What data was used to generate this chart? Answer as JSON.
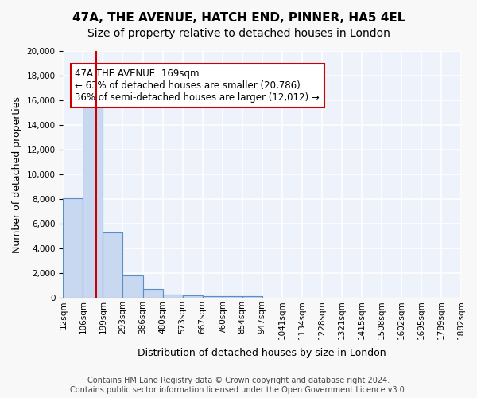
{
  "title_line1": "47A, THE AVENUE, HATCH END, PINNER, HA5 4EL",
  "title_line2": "Size of property relative to detached houses in London",
  "xlabel": "Distribution of detached houses by size in London",
  "ylabel": "Number of detached properties",
  "footer1": "Contains HM Land Registry data © Crown copyright and database right 2024.",
  "footer2": "Contains public sector information licensed under the Open Government Licence v3.0.",
  "annotation_line1": "47A THE AVENUE: 169sqm",
  "annotation_line2": "← 63% of detached houses are smaller (20,786)",
  "annotation_line3": "36% of semi-detached houses are larger (12,012) →",
  "bar_labels": [
    "12sqm",
    "106sqm",
    "199sqm",
    "293sqm",
    "386sqm",
    "480sqm",
    "573sqm",
    "667sqm",
    "760sqm",
    "854sqm",
    "947sqm",
    "1041sqm",
    "1134sqm",
    "1228sqm",
    "1321sqm",
    "1415sqm",
    "1508sqm",
    "1602sqm",
    "1695sqm",
    "1789sqm",
    "1882sqm"
  ],
  "bar_heights": [
    8100,
    16500,
    5300,
    1850,
    700,
    300,
    200,
    175,
    175,
    125,
    50,
    50,
    50,
    50,
    50,
    50,
    50,
    50,
    50,
    50
  ],
  "bar_color": "#c8d8f0",
  "bar_edge_color": "#5b8ec4",
  "background_color": "#eef2fa",
  "ylim": [
    0,
    20000
  ],
  "yticks": [
    0,
    2000,
    4000,
    6000,
    8000,
    10000,
    12000,
    14000,
    16000,
    18000,
    20000
  ],
  "grid_color": "#ffffff",
  "vline_color": "#cc0000",
  "annotation_box_color": "#cc0000",
  "title_fontsize": 11,
  "subtitle_fontsize": 10,
  "axis_label_fontsize": 9,
  "tick_fontsize": 7.5,
  "annotation_fontsize": 8.5,
  "footer_fontsize": 7
}
